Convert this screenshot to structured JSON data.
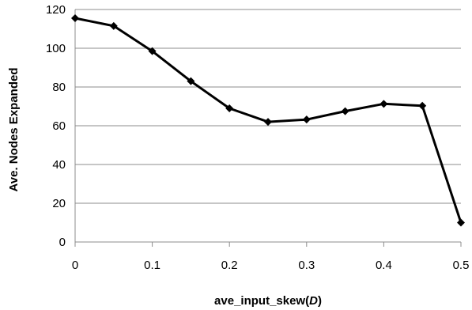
{
  "chart_data": {
    "type": "line",
    "xlabel": "ave_input_skew(",
    "xlabel_var": "D",
    "xlabel_close": ")",
    "ylabel": "Ave. Nodes Expanded",
    "xlim": [
      0,
      0.5
    ],
    "ylim": [
      0,
      120
    ],
    "x_ticks": [
      "0",
      "0.1",
      "0.2",
      "0.3",
      "0.4",
      "0.5"
    ],
    "y_ticks": [
      "0",
      "20",
      "40",
      "60",
      "80",
      "100",
      "120"
    ],
    "grid": "horizontal",
    "legend": "none",
    "line_color": "#000000",
    "marker": "diamond",
    "series": [
      {
        "x": [
          0,
          0.05,
          0.1,
          0.15,
          0.2,
          0.25,
          0.3,
          0.35,
          0.4,
          0.45,
          0.5
        ],
        "values": [
          115.5,
          111.5,
          98.5,
          83,
          69,
          62,
          63.2,
          67.5,
          71.3,
          70.3,
          10
        ]
      }
    ]
  }
}
